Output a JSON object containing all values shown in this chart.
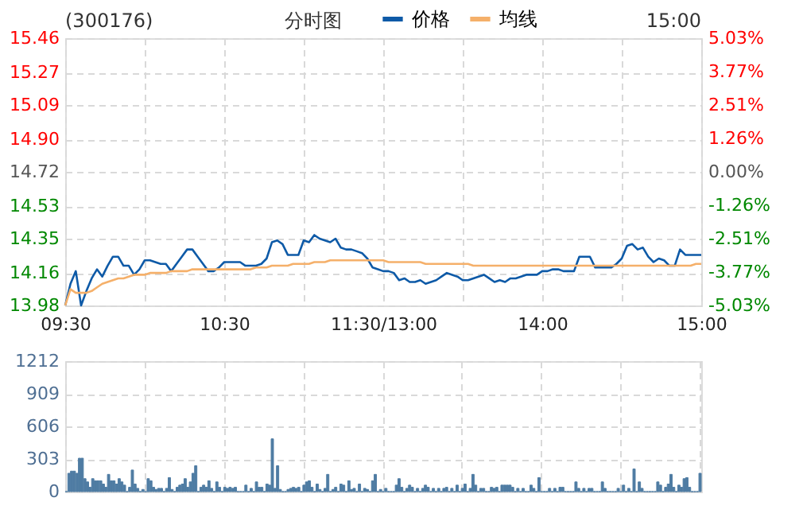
{
  "chart_data": [
    {
      "type": "line",
      "title": "(300176)",
      "annotations": [
        "分时图",
        "15:00"
      ],
      "legend": "top",
      "grid": true,
      "categories": [
        "09:30",
        null,
        null,
        null,
        null,
        null,
        null,
        null,
        null,
        null,
        null,
        null,
        null,
        null,
        null,
        null,
        null,
        null,
        null,
        null,
        null,
        null,
        null,
        null,
        null,
        null,
        null,
        null,
        null,
        null,
        "10:30",
        null,
        null,
        null,
        null,
        null,
        null,
        null,
        null,
        null,
        null,
        null,
        null,
        null,
        null,
        null,
        null,
        null,
        null,
        null,
        null,
        null,
        null,
        null,
        null,
        null,
        null,
        null,
        null,
        null,
        "11:30/13:00",
        null,
        null,
        null,
        null,
        null,
        null,
        null,
        null,
        null,
        null,
        null,
        null,
        null,
        null,
        null,
        null,
        null,
        null,
        null,
        null,
        null,
        null,
        null,
        null,
        null,
        null,
        null,
        null,
        null,
        "14:00",
        null,
        null,
        null,
        null,
        null,
        null,
        null,
        null,
        null,
        null,
        null,
        null,
        null,
        null,
        null,
        null,
        null,
        null,
        null,
        null,
        null,
        null,
        null,
        null,
        null,
        null,
        null,
        null,
        null,
        "15:00"
      ],
      "ylim": [
        13.98,
        15.46
      ],
      "yticks": [
        15.46,
        15.27,
        15.09,
        {
          "value": 14.9,
          "label": "14.90"
        },
        14.72,
        14.53,
        14.35,
        14.16,
        13.98
      ],
      "y2lim": [
        -5.03,
        5.03
      ],
      "y2ticks": [
        {
          "value": 5.03,
          "label": "5.03%"
        },
        {
          "value": 3.77,
          "label": "3.77%"
        },
        {
          "value": 2.51,
          "label": "2.51%"
        },
        {
          "value": 1.26,
          "label": "1.26%"
        },
        {
          "value": 0,
          "label": "0.00%"
        },
        {
          "value": -1.26,
          "label": "-1.26%"
        },
        {
          "value": -2.51,
          "label": "-2.51%"
        },
        {
          "value": -3.77,
          "label": "-3.77%"
        },
        {
          "value": -5.03,
          "label": "-5.03%"
        }
      ],
      "series": [
        {
          "name": "价格",
          "color": "#0e5aa7",
          "values": [
            13.98,
            14.1,
            14.17,
            13.98,
            14.06,
            14.13,
            14.18,
            14.14,
            14.2,
            14.25,
            14.25,
            14.2,
            14.2,
            14.15,
            14.18,
            14.23,
            14.23,
            14.22,
            14.21,
            14.21,
            14.17,
            14.21,
            14.25,
            14.29,
            14.29,
            14.25,
            14.21,
            14.17,
            14.17,
            14.19,
            14.22,
            14.22,
            14.22,
            14.22,
            14.2,
            14.2,
            14.2,
            14.21,
            14.24,
            14.33,
            14.34,
            14.32,
            14.26,
            14.26,
            14.26,
            14.34,
            14.33,
            14.37,
            14.35,
            14.34,
            14.33,
            14.35,
            14.3,
            14.29,
            14.29,
            14.28,
            14.27,
            14.24,
            14.19,
            14.18,
            14.17,
            14.17,
            14.16,
            14.12,
            14.13,
            14.11,
            14.11,
            14.12,
            14.1,
            14.11,
            14.12,
            14.14,
            14.16,
            14.15,
            14.14,
            14.12,
            14.12,
            14.13,
            14.14,
            14.15,
            14.13,
            14.11,
            14.12,
            14.11,
            14.13,
            14.13,
            14.14,
            14.15,
            14.15,
            14.15,
            14.17,
            14.17,
            14.18,
            14.18,
            14.17,
            14.17,
            14.17,
            14.25,
            14.25,
            14.25,
            14.19,
            14.19,
            14.19,
            14.19,
            14.21,
            14.24,
            14.31,
            14.32,
            14.29,
            14.3,
            14.25,
            14.22,
            14.24,
            14.23,
            14.2,
            14.2,
            14.29,
            14.26,
            14.26,
            14.26,
            14.26
          ]
        },
        {
          "name": "均线",
          "color": "#f5b06a",
          "values": [
            13.98,
            14.07,
            14.05,
            14.05,
            14.05,
            14.06,
            14.08,
            14.1,
            14.11,
            14.12,
            14.13,
            14.13,
            14.14,
            14.15,
            14.15,
            14.15,
            14.16,
            14.16,
            14.16,
            14.16,
            14.17,
            14.17,
            14.17,
            14.17,
            14.18,
            14.18,
            14.18,
            14.18,
            14.18,
            14.18,
            14.18,
            14.18,
            14.18,
            14.18,
            14.18,
            14.18,
            14.19,
            14.19,
            14.19,
            14.2,
            14.2,
            14.2,
            14.2,
            14.21,
            14.21,
            14.21,
            14.21,
            14.22,
            14.22,
            14.22,
            14.23,
            14.23,
            14.23,
            14.23,
            14.23,
            14.23,
            14.23,
            14.23,
            14.23,
            14.23,
            14.23,
            14.22,
            14.22,
            14.22,
            14.22,
            14.22,
            14.22,
            14.22,
            14.21,
            14.21,
            14.21,
            14.21,
            14.21,
            14.21,
            14.21,
            14.21,
            14.21,
            14.2,
            14.2,
            14.2,
            14.2,
            14.2,
            14.2,
            14.2,
            14.2,
            14.2,
            14.2,
            14.2,
            14.2,
            14.2,
            14.2,
            14.2,
            14.2,
            14.2,
            14.2,
            14.2,
            14.2,
            14.2,
            14.2,
            14.2,
            14.2,
            14.2,
            14.2,
            14.2,
            14.2,
            14.2,
            14.2,
            14.2,
            14.2,
            14.2,
            14.2,
            14.2,
            14.2,
            14.2,
            14.2,
            14.2,
            14.2,
            14.2,
            14.2,
            14.21,
            14.21
          ]
        }
      ]
    },
    {
      "type": "bar",
      "color": "#4f7ca3",
      "grid": true,
      "tick_labels": "y",
      "categories": [
        null,
        null,
        null,
        null,
        null,
        null,
        null,
        null,
        null,
        null,
        null,
        null,
        null,
        null,
        null,
        null,
        null,
        null,
        null,
        null,
        null,
        null,
        null,
        null,
        null,
        null,
        null,
        null,
        null,
        null,
        null,
        null,
        null,
        null,
        null,
        null,
        null,
        null,
        null,
        null,
        null,
        null,
        null,
        null,
        null,
        null,
        null,
        null,
        null,
        null,
        null,
        null,
        null,
        null,
        null,
        null,
        null,
        null,
        null,
        null,
        null,
        null,
        null,
        null,
        null,
        null,
        null,
        null,
        null,
        null,
        null,
        null,
        null,
        null,
        null,
        null,
        null,
        null,
        null,
        null,
        null,
        null,
        null,
        null,
        null,
        null,
        null,
        null,
        null,
        null,
        null,
        null,
        null,
        null,
        null,
        null,
        null,
        null,
        null,
        null,
        null,
        null,
        null,
        null,
        null,
        null,
        null,
        null,
        null,
        null,
        null,
        null,
        null,
        null,
        null,
        null,
        null,
        null,
        null,
        null,
        null,
        null,
        null,
        null,
        null,
        null,
        null,
        null,
        null,
        null,
        null,
        null,
        null,
        null,
        null,
        null,
        null,
        null,
        null,
        null,
        null,
        null,
        null,
        null,
        null,
        null,
        null,
        null,
        null,
        null,
        null,
        null,
        null,
        null,
        null,
        null,
        null,
        null,
        null,
        null,
        null,
        null,
        null,
        null,
        null,
        null,
        null,
        null,
        null,
        null,
        null,
        null,
        null,
        null,
        null,
        null,
        null,
        null,
        null,
        null,
        null,
        null,
        null,
        null,
        null,
        null,
        null,
        null,
        null,
        null,
        null,
        null,
        null,
        null,
        null,
        null,
        null,
        null,
        null,
        null,
        null,
        null,
        null,
        null,
        null,
        null,
        null,
        null,
        null,
        null,
        null,
        null,
        null,
        null,
        null,
        null,
        null,
        null,
        null,
        null,
        null,
        null,
        null,
        null,
        null,
        null,
        null,
        null,
        null,
        null,
        null,
        null,
        null,
        null,
        null,
        null,
        null,
        null,
        null,
        null,
        null
      ],
      "ylim": [
        0,
        1212
      ],
      "yticks": [
        0,
        303,
        606,
        909,
        1212
      ],
      "values": [
        0,
        170,
        190,
        190,
        170,
        310,
        310,
        120,
        90,
        40,
        120,
        100,
        100,
        100,
        70,
        40,
        160,
        100,
        100,
        70,
        120,
        90,
        60,
        0,
        40,
        200,
        70,
        30,
        0,
        20,
        0,
        120,
        100,
        40,
        20,
        30,
        30,
        0,
        30,
        130,
        20,
        0,
        40,
        60,
        70,
        120,
        40,
        90,
        170,
        240,
        0,
        40,
        60,
        40,
        100,
        30,
        0,
        90,
        40,
        0,
        40,
        30,
        40,
        30,
        40,
        0,
        0,
        0,
        60,
        0,
        30,
        0,
        90,
        40,
        40,
        0,
        70,
        60,
        490,
        30,
        240,
        20,
        0,
        0,
        20,
        30,
        40,
        30,
        40,
        0,
        60,
        90,
        100,
        40,
        0,
        70,
        20,
        0,
        30,
        160,
        0,
        20,
        40,
        0,
        70,
        60,
        0,
        100,
        20,
        30,
        0,
        70,
        0,
        30,
        20,
        0,
        100,
        160,
        0,
        20,
        0,
        30,
        0,
        0,
        0,
        60,
        120,
        40,
        0,
        30,
        60,
        40,
        0,
        30,
        0,
        30,
        60,
        40,
        0,
        30,
        0,
        30,
        0,
        30,
        40,
        0,
        30,
        0,
        60,
        0,
        30,
        70,
        0,
        30,
        160,
        60,
        0,
        30,
        30,
        0,
        0,
        40,
        30,
        40,
        0,
        60,
        60,
        60,
        60,
        40,
        0,
        30,
        0,
        30,
        0,
        0,
        60,
        30,
        0,
        130,
        0,
        0,
        0,
        30,
        0,
        30,
        0,
        40,
        40,
        0,
        0,
        0,
        0,
        90,
        30,
        0,
        30,
        0,
        30,
        30,
        0,
        0,
        0,
        90,
        30,
        0,
        0,
        0,
        0,
        30,
        0,
        60,
        0,
        30,
        0,
        210,
        0,
        90,
        30,
        0,
        0,
        0,
        0,
        0,
        90,
        60,
        0,
        40,
        70,
        160,
        40,
        0,
        60,
        40,
        120,
        130,
        40,
        0,
        0,
        0,
        170
      ]
    }
  ]
}
